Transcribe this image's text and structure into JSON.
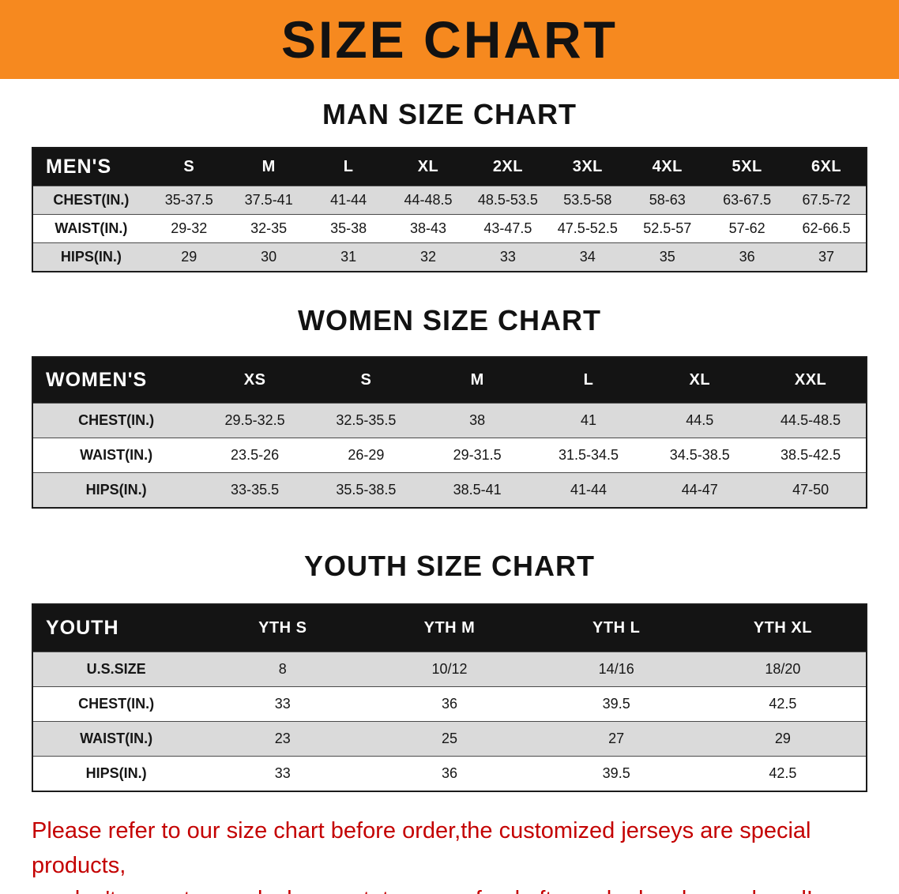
{
  "banner": {
    "title": "SIZE CHART",
    "bg_color": "#f6891f",
    "text_color": "#121212"
  },
  "sections": {
    "men": {
      "heading": "MAN SIZE CHART",
      "table": {
        "header": [
          "MEN'S",
          "S",
          "M",
          "L",
          "XL",
          "2XL",
          "3XL",
          "4XL",
          "5XL",
          "6XL"
        ],
        "rows": [
          [
            "CHEST(IN.)",
            "35-37.5",
            "37.5-41",
            "41-44",
            "44-48.5",
            "48.5-53.5",
            "53.5-58",
            "58-63",
            "63-67.5",
            "67.5-72"
          ],
          [
            "WAIST(IN.)",
            "29-32",
            "32-35",
            "35-38",
            "38-43",
            "43-47.5",
            "47.5-52.5",
            "52.5-57",
            "57-62",
            "62-66.5"
          ],
          [
            "HIPS(IN.)",
            "29",
            "30",
            "31",
            "32",
            "33",
            "34",
            "35",
            "36",
            "37"
          ]
        ]
      }
    },
    "women": {
      "heading": "WOMEN SIZE CHART",
      "table": {
        "header": [
          "WOMEN'S",
          "XS",
          "S",
          "M",
          "L",
          "XL",
          "XXL"
        ],
        "rows": [
          [
            "CHEST(IN.)",
            "29.5-32.5",
            "32.5-35.5",
            "38",
            "41",
            "44.5",
            "44.5-48.5"
          ],
          [
            "WAIST(IN.)",
            "23.5-26",
            "26-29",
            "29-31.5",
            "31.5-34.5",
            "34.5-38.5",
            "38.5-42.5"
          ],
          [
            "HIPS(IN.)",
            "33-35.5",
            "35.5-38.5",
            "38.5-41",
            "41-44",
            "44-47",
            "47-50"
          ]
        ]
      }
    },
    "youth": {
      "heading": "YOUTH SIZE CHART",
      "table": {
        "header": [
          "YOUTH",
          "YTH S",
          "YTH M",
          "YTH L",
          "YTH XL"
        ],
        "rows": [
          [
            "U.S.SIZE",
            "8",
            "10/12",
            "14/16",
            "18/20"
          ],
          [
            "CHEST(IN.)",
            "33",
            "36",
            "39.5",
            "42.5"
          ],
          [
            "WAIST(IN.)",
            "23",
            "25",
            "27",
            "29"
          ],
          [
            "HIPS(IN.)",
            "33",
            "36",
            "39.5",
            "42.5"
          ]
        ]
      }
    }
  },
  "footer": {
    "line1": "Please refer to our size chart before order,the customized jerseys are special products,",
    "line2": "we don't accept cancel, change, teturn or refund after order has been placed!",
    "text_color": "#c40000"
  }
}
